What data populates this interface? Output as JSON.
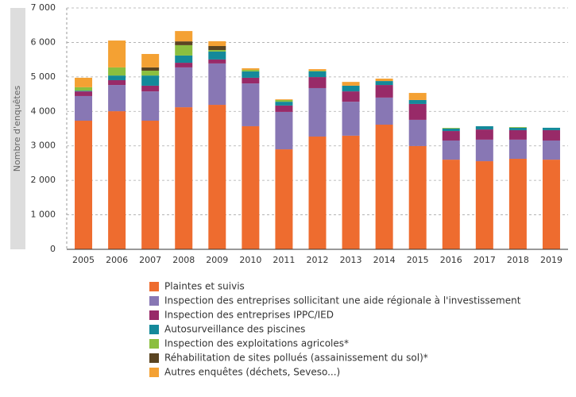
{
  "chart_data": {
    "type": "stacked_bar",
    "y_label": "Nombre d'enquêtes",
    "categories": [
      "2005",
      "2006",
      "2007",
      "2008",
      "2009",
      "2010",
      "2011",
      "2012",
      "2013",
      "2014",
      "2015",
      "2016",
      "2017",
      "2018",
      "2019"
    ],
    "series": [
      {
        "name": "Plaintes et suivis",
        "color": "#ee6c2f",
        "values": [
          3730,
          4005,
          3730,
          4120,
          4190,
          3570,
          2900,
          3270,
          3295,
          3615,
          2995,
          2600,
          2555,
          2625,
          2600
        ]
      },
      {
        "name": "Inspection des entreprises sollicitant une aide régionale à l'investissement",
        "color": "#8877b4",
        "values": [
          715,
          760,
          850,
          1155,
          1200,
          1240,
          1085,
          1405,
          985,
          785,
          760,
          555,
          625,
          555,
          555
        ]
      },
      {
        "name": "Inspection des entreprises IPPC/IED",
        "color": "#982a68",
        "values": [
          135,
          140,
          165,
          135,
          115,
          165,
          185,
          320,
          300,
          365,
          460,
          275,
          295,
          275,
          300
        ]
      },
      {
        "name": "Autosurveillance des piscines",
        "color": "#14899a",
        "values": [
          20,
          135,
          295,
          210,
          230,
          185,
          110,
          165,
          165,
          115,
          115,
          70,
          95,
          70,
          70
        ]
      },
      {
        "name": "Inspection des exploitations agricoles*",
        "color": "#8bbf3f",
        "values": [
          100,
          235,
          140,
          300,
          45,
          45,
          50,
          20,
          0,
          0,
          0,
          20,
          0,
          20,
          0
        ]
      },
      {
        "name": "Réhabilitation de sites pollués (assainissement du sol)*",
        "color": "#5a4421",
        "values": [
          0,
          0,
          95,
          110,
          115,
          0,
          0,
          0,
          0,
          0,
          0,
          0,
          0,
          0,
          0
        ]
      },
      {
        "name": "Autres enquêtes (déchets, Seveso...)",
        "color": "#f4a133",
        "values": [
          275,
          780,
          390,
          300,
          140,
          45,
          20,
          45,
          110,
          70,
          205,
          0,
          0,
          0,
          0
        ]
      }
    ],
    "ylim": [
      0,
      7000
    ],
    "yticks": [
      0,
      {
        "value": 1000,
        "label": "1 000"
      },
      {
        "value": 2000,
        "label": "2 000"
      },
      {
        "value": 3000,
        "label": "3 000"
      },
      {
        "value": 4000,
        "label": "4 000"
      },
      {
        "value": 5000,
        "label": "5 000"
      },
      {
        "value": 6000,
        "label": "6 000"
      },
      {
        "value": 7000,
        "label": "7 000"
      }
    ],
    "grid": true
  }
}
